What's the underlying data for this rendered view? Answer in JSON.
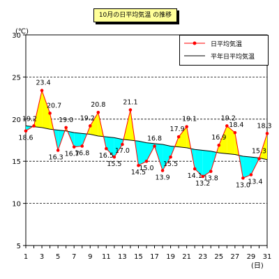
{
  "chart_data": {
    "type": "line",
    "title": "10月の日平均気温 の推移",
    "y_unit": "(℃)",
    "x_unit": "(日)",
    "ylim": [
      5,
      30
    ],
    "y_ticks": [
      5,
      10,
      15,
      20,
      25,
      30
    ],
    "x_ticks": [
      1,
      3,
      5,
      7,
      9,
      11,
      13,
      15,
      17,
      19,
      21,
      23,
      25,
      27,
      29,
      31
    ],
    "x": [
      1,
      2,
      3,
      4,
      5,
      6,
      7,
      8,
      9,
      10,
      11,
      12,
      13,
      14,
      15,
      16,
      17,
      18,
      19,
      20,
      21,
      22,
      23,
      24,
      25,
      26,
      27,
      28,
      29,
      30,
      31
    ],
    "series": [
      {
        "name": "日平均気温",
        "values": [
          18.6,
          19.2,
          23.4,
          20.7,
          16.3,
          19.0,
          16.7,
          16.8,
          19.2,
          20.8,
          16.5,
          15.5,
          17.0,
          21.1,
          14.5,
          15.0,
          16.8,
          13.9,
          15.5,
          17.9,
          19.1,
          14.1,
          13.2,
          13.8,
          16.9,
          19.2,
          18.4,
          13.0,
          13.4,
          15.3,
          18.3
        ],
        "color": "#ff0000"
      },
      {
        "name": "平年日平均気温",
        "values": [
          19.2,
          19.1,
          19.0,
          18.8,
          18.7,
          18.6,
          18.4,
          18.3,
          18.2,
          18.0,
          17.9,
          17.8,
          17.6,
          17.5,
          17.4,
          17.2,
          17.1,
          17.0,
          16.8,
          16.7,
          16.6,
          16.4,
          16.3,
          16.2,
          16.0,
          15.9,
          15.8,
          15.6,
          15.5,
          15.4,
          15.2
        ],
        "color": "#000000"
      }
    ],
    "above_fill": "#ffff00",
    "below_fill": "#00ffff",
    "grid": "horizontal-dashed",
    "legend_position": "top-right"
  }
}
